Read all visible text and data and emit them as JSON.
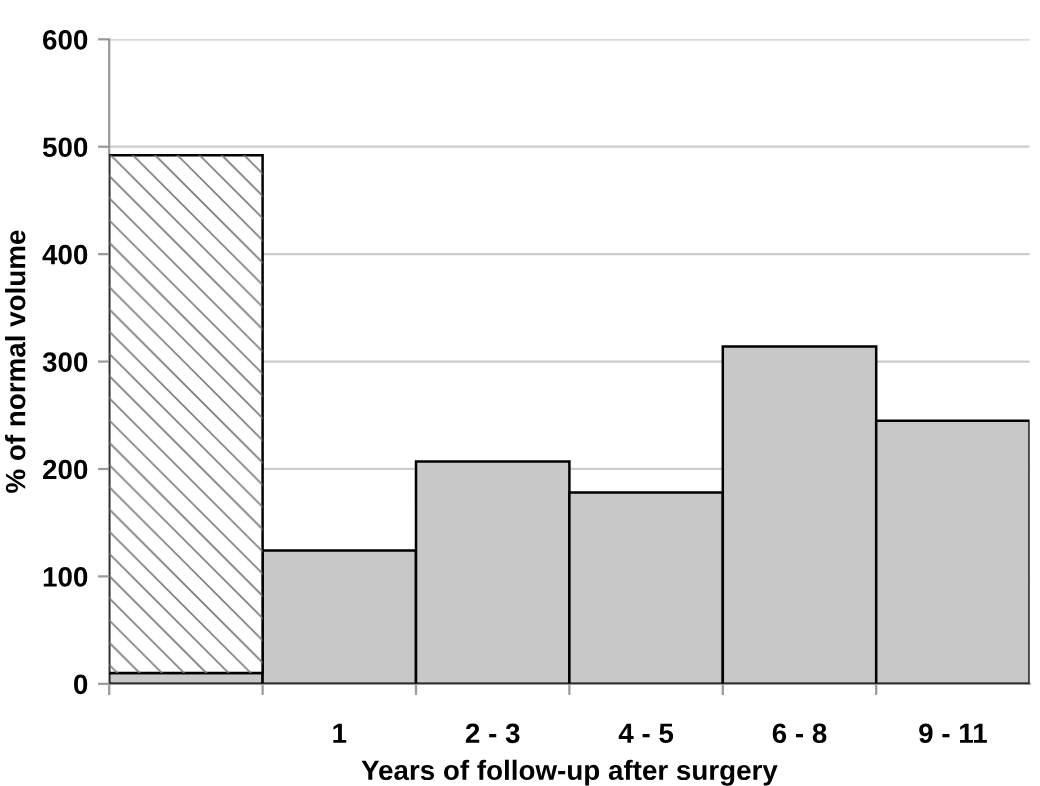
{
  "chart_data": {
    "type": "bar",
    "stacked": true,
    "xlabel": "Years of follow-up after surgery",
    "ylabel": "% of normal volume",
    "categories": [
      null,
      "1",
      "2 - 3",
      "4 - 5",
      "6 - 8",
      "9 - 11"
    ],
    "series": [
      {
        "color": "#c8c8c8",
        "values": [
          10,
          124,
          207,
          178,
          314,
          245
        ]
      },
      {
        "color": "#ffffff",
        "values": [
          482,
          null,
          null,
          null,
          null,
          null
        ]
      }
    ],
    "ylim": [
      0,
      600
    ],
    "yticks": [
      0,
      100,
      200,
      300,
      400,
      500,
      600
    ],
    "grid": "y"
  }
}
